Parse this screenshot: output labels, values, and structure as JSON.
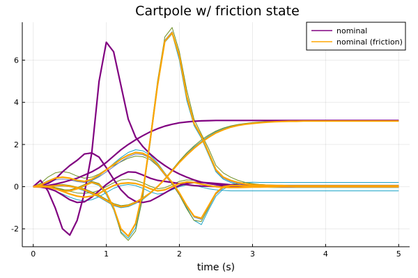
{
  "chart_data": {
    "type": "line",
    "title": "Cartpole w/ friction state",
    "xlabel": "time (s)",
    "ylabel": "",
    "xlim": [
      -0.15,
      5.15
    ],
    "ylim": [
      -2.85,
      7.8
    ],
    "xticks": [
      0,
      1,
      2,
      3,
      4,
      5
    ],
    "yticks": [
      -2,
      0,
      2,
      4,
      6
    ],
    "grid": true,
    "legend": {
      "placement": "top-right",
      "entries": [
        "nominal",
        "nominal (friction)"
      ]
    },
    "colors": {
      "nominal": "#800080",
      "friction": "#FFA500",
      "sample_teal": "#1aa3c7",
      "sample_olive": "#6b8e23",
      "sample_slate": "#6a7fb5"
    },
    "x": [
      0.0,
      0.1,
      0.2,
      0.3,
      0.4,
      0.5,
      0.6,
      0.7,
      0.8,
      0.9,
      1.0,
      1.1,
      1.2,
      1.3,
      1.4,
      1.5,
      1.6,
      1.7,
      1.8,
      1.9,
      2.0,
      2.1,
      2.2,
      2.3,
      2.4,
      2.5,
      2.6,
      2.7,
      2.8,
      2.9,
      3.0,
      3.1,
      3.2,
      3.3,
      3.4,
      3.5,
      3.6,
      3.7,
      3.8,
      3.9,
      4.0,
      4.1,
      4.2,
      4.3,
      4.4,
      4.5,
      4.6,
      4.7,
      4.8,
      4.9,
      5.0
    ],
    "series": [
      {
        "name": "nominal",
        "role": "nominal",
        "values": [
          0.0,
          0.0,
          0.05,
          0.12,
          0.2,
          0.3,
          0.4,
          0.55,
          0.7,
          0.9,
          1.15,
          1.45,
          1.75,
          2.0,
          2.22,
          2.42,
          2.6,
          2.75,
          2.87,
          2.96,
          3.03,
          3.07,
          3.1,
          3.12,
          3.13,
          3.14,
          3.14,
          3.14,
          3.14,
          3.14,
          3.14,
          3.14,
          3.14,
          3.14,
          3.14,
          3.14,
          3.14,
          3.14,
          3.14,
          3.14,
          3.14,
          3.14,
          3.14,
          3.14,
          3.14,
          3.14,
          3.14,
          3.14,
          3.14,
          3.14,
          3.14
        ]
      },
      {
        "role": "nominal",
        "values": [
          0.0,
          0.3,
          -0.2,
          -1.0,
          -2.0,
          -2.3,
          -1.6,
          -0.3,
          1.6,
          5.0,
          6.85,
          6.4,
          4.8,
          3.2,
          2.35,
          1.9,
          1.55,
          1.25,
          1.0,
          0.78,
          0.6,
          0.45,
          0.32,
          0.22,
          0.15,
          0.1,
          0.06,
          0.04,
          0.02,
          0.01,
          0.0,
          0.0,
          0.0,
          0.0,
          0.0,
          0.0,
          0.0,
          0.0,
          0.0,
          0.0,
          0.0,
          0.0,
          0.0,
          0.0,
          0.0,
          0.0,
          0.0,
          0.0,
          0.0,
          0.0,
          0.0
        ]
      },
      {
        "role": "nominal",
        "values": [
          0.0,
          0.05,
          0.15,
          0.35,
          0.7,
          1.0,
          1.25,
          1.55,
          1.6,
          1.4,
          0.9,
          0.35,
          -0.15,
          -0.5,
          -0.7,
          -0.75,
          -0.68,
          -0.5,
          -0.3,
          -0.1,
          0.05,
          0.15,
          0.2,
          0.2,
          0.18,
          0.15,
          0.12,
          0.09,
          0.07,
          0.05,
          0.03,
          0.02,
          0.01,
          0.0,
          0.0,
          0.0,
          0.0,
          0.0,
          0.0,
          0.0,
          0.0,
          0.0,
          0.0,
          0.0,
          0.0,
          0.0,
          0.0,
          0.0,
          0.0,
          0.0,
          0.0
        ]
      },
      {
        "role": "nominal",
        "values": [
          0.0,
          -0.02,
          -0.08,
          -0.2,
          -0.4,
          -0.62,
          -0.75,
          -0.72,
          -0.5,
          -0.2,
          0.1,
          0.35,
          0.55,
          0.7,
          0.68,
          0.55,
          0.4,
          0.3,
          0.25,
          0.2,
          0.14,
          0.09,
          0.05,
          0.03,
          0.02,
          0.01,
          0.0,
          0.0,
          0.0,
          0.0,
          0.0,
          0.0,
          0.0,
          0.0,
          0.0,
          0.0,
          0.0,
          0.0,
          0.0,
          0.0,
          0.0,
          0.0,
          0.0,
          0.0,
          0.0,
          0.0,
          0.0,
          0.0,
          0.0,
          0.0,
          0.0
        ]
      },
      {
        "name": "nominal (friction)",
        "role": "friction",
        "values": [
          0.0,
          0.0,
          0.02,
          0.04,
          0.06,
          0.02,
          -0.05,
          -0.15,
          -0.3,
          -0.45,
          -0.65,
          -0.85,
          -0.95,
          -0.9,
          -0.75,
          -0.55,
          -0.3,
          0.0,
          0.35,
          0.75,
          1.15,
          1.5,
          1.82,
          2.1,
          2.34,
          2.55,
          2.7,
          2.82,
          2.9,
          2.96,
          3.0,
          3.03,
          3.06,
          3.08,
          3.09,
          3.1,
          3.1,
          3.11,
          3.11,
          3.11,
          3.11,
          3.11,
          3.11,
          3.11,
          3.11,
          3.11,
          3.11,
          3.11,
          3.11,
          3.11,
          3.11
        ]
      },
      {
        "role": "friction",
        "values": [
          0.0,
          0.05,
          0.0,
          -0.1,
          -0.2,
          -0.2,
          -0.1,
          0.05,
          0.2,
          0.1,
          -0.3,
          -1.0,
          -2.0,
          -2.35,
          -1.75,
          -0.2,
          2.2,
          4.8,
          6.9,
          7.3,
          6.2,
          4.3,
          3.0,
          2.4,
          1.6,
          0.8,
          0.45,
          0.3,
          0.2,
          0.13,
          0.09,
          0.07,
          0.06,
          0.05,
          0.05,
          0.04,
          0.04,
          0.04,
          0.04,
          0.04,
          0.04,
          0.04,
          0.04,
          0.04,
          0.04,
          0.04,
          0.04,
          0.04,
          0.04,
          0.04,
          0.04
        ]
      },
      {
        "role": "friction",
        "values": [
          0.0,
          0.08,
          0.25,
          0.4,
          0.45,
          0.4,
          0.3,
          0.25,
          0.35,
          0.55,
          0.8,
          1.05,
          1.3,
          1.5,
          1.62,
          1.58,
          1.4,
          1.05,
          0.6,
          0.2,
          -0.3,
          -0.9,
          -1.4,
          -1.5,
          -0.9,
          -0.3,
          0.0,
          0.05,
          0.05,
          0.04,
          0.03,
          0.02,
          0.02,
          0.01,
          0.01,
          0.01,
          0.0,
          0.0,
          0.0,
          0.0,
          0.0,
          0.0,
          0.0,
          0.0,
          0.0,
          0.0,
          0.0,
          0.0,
          0.0,
          0.0,
          0.0
        ]
      },
      {
        "role": "friction",
        "values": [
          0.0,
          0.0,
          -0.02,
          -0.1,
          -0.22,
          -0.35,
          -0.45,
          -0.5,
          -0.45,
          -0.32,
          -0.12,
          0.05,
          0.15,
          0.18,
          0.15,
          0.05,
          -0.1,
          -0.2,
          -0.15,
          0.0,
          0.15,
          0.22,
          0.2,
          0.12,
          0.05,
          0.0,
          -0.03,
          -0.04,
          -0.04,
          -0.03,
          -0.02,
          -0.02,
          -0.01,
          -0.01,
          0.0,
          0.0,
          0.0,
          0.0,
          0.0,
          0.0,
          0.0,
          0.0,
          0.0,
          0.0,
          0.0,
          0.0,
          0.0,
          0.0,
          0.0,
          0.0,
          0.0
        ]
      },
      {
        "role": "sample_teal",
        "values": [
          0.0,
          0.0,
          0.0,
          0.02,
          0.04,
          0.0,
          -0.08,
          -0.2,
          -0.35,
          -0.5,
          -0.7,
          -0.9,
          -1.0,
          -0.95,
          -0.8,
          -0.6,
          -0.33,
          -0.02,
          0.35,
          0.76,
          1.18,
          1.55,
          1.88,
          2.15,
          2.4,
          2.6,
          2.75,
          2.86,
          2.93,
          2.99,
          3.03,
          3.06,
          3.08,
          3.1,
          3.11,
          3.12,
          3.12,
          3.12,
          3.13,
          3.13,
          3.13,
          3.13,
          3.13,
          3.13,
          3.13,
          3.13,
          3.13,
          3.13,
          3.13,
          3.13,
          3.13
        ]
      },
      {
        "role": "sample_teal",
        "values": [
          0.0,
          0.05,
          -0.02,
          -0.12,
          -0.22,
          -0.22,
          -0.12,
          0.02,
          0.18,
          0.05,
          -0.38,
          -1.1,
          -2.15,
          -2.45,
          -1.95,
          -0.35,
          2.05,
          4.7,
          6.85,
          7.25,
          6.0,
          4.1,
          2.9,
          2.3,
          1.5,
          0.7,
          0.35,
          0.2,
          0.1,
          0.04,
          0.0,
          -0.02,
          -0.03,
          -0.04,
          -0.04,
          -0.04,
          -0.04,
          -0.04,
          -0.04,
          -0.04,
          -0.04,
          -0.04,
          -0.04,
          -0.04,
          -0.04,
          -0.04,
          -0.04,
          -0.04,
          -0.04,
          -0.04,
          -0.04
        ]
      },
      {
        "role": "sample_teal",
        "values": [
          0.0,
          0.1,
          0.28,
          0.42,
          0.45,
          0.38,
          0.26,
          0.2,
          0.3,
          0.5,
          0.8,
          1.1,
          1.38,
          1.62,
          1.75,
          1.7,
          1.5,
          1.12,
          0.65,
          0.22,
          -0.35,
          -1.0,
          -1.6,
          -1.8,
          -1.1,
          -0.45,
          -0.12,
          0.05,
          0.15,
          0.2,
          0.21,
          0.2,
          0.2,
          0.2,
          0.2,
          0.2,
          0.2,
          0.2,
          0.2,
          0.2,
          0.2,
          0.2,
          0.2,
          0.2,
          0.2,
          0.2,
          0.2,
          0.2,
          0.2,
          0.2,
          0.2
        ]
      },
      {
        "role": "sample_teal",
        "values": [
          0.0,
          -0.02,
          -0.08,
          -0.2,
          -0.35,
          -0.5,
          -0.62,
          -0.68,
          -0.62,
          -0.48,
          -0.28,
          -0.08,
          0.05,
          0.1,
          0.05,
          -0.08,
          -0.25,
          -0.35,
          -0.3,
          -0.15,
          0.0,
          0.08,
          0.06,
          -0.02,
          -0.1,
          -0.15,
          -0.18,
          -0.2,
          -0.2,
          -0.2,
          -0.2,
          -0.2,
          -0.2,
          -0.2,
          -0.2,
          -0.2,
          -0.2,
          -0.2,
          -0.2,
          -0.2,
          -0.2,
          -0.2,
          -0.2,
          -0.2,
          -0.2,
          -0.2,
          -0.2,
          -0.2,
          -0.2,
          -0.2,
          -0.2
        ]
      },
      {
        "role": "sample_olive",
        "values": [
          0.0,
          0.02,
          0.05,
          0.08,
          0.1,
          0.06,
          -0.02,
          -0.1,
          -0.25,
          -0.4,
          -0.6,
          -0.8,
          -0.9,
          -0.86,
          -0.72,
          -0.52,
          -0.28,
          0.02,
          0.38,
          0.8,
          1.22,
          1.6,
          1.93,
          2.22,
          2.45,
          2.64,
          2.78,
          2.88,
          2.95,
          3.0,
          3.04,
          3.07,
          3.09,
          3.1,
          3.11,
          3.11,
          3.12,
          3.12,
          3.12,
          3.12,
          3.12,
          3.12,
          3.12,
          3.12,
          3.12,
          3.12,
          3.12,
          3.12,
          3.12,
          3.12,
          3.12
        ]
      },
      {
        "role": "sample_olive",
        "values": [
          0.0,
          0.08,
          0.05,
          -0.05,
          -0.15,
          -0.15,
          -0.05,
          0.1,
          0.25,
          0.15,
          -0.25,
          -1.0,
          -2.2,
          -2.55,
          -2.1,
          -0.5,
          2.35,
          5.0,
          7.1,
          7.55,
          6.4,
          4.6,
          3.2,
          2.5,
          1.8,
          1.0,
          0.65,
          0.45,
          0.3,
          0.2,
          0.14,
          0.1,
          0.08,
          0.06,
          0.05,
          0.05,
          0.05,
          0.05,
          0.05,
          0.05,
          0.05,
          0.05,
          0.05,
          0.05,
          0.05,
          0.05,
          0.05,
          0.05,
          0.05,
          0.05,
          0.05
        ]
      },
      {
        "role": "sample_olive",
        "values": [
          0.0,
          0.15,
          0.45,
          0.65,
          0.72,
          0.65,
          0.5,
          0.4,
          0.45,
          0.6,
          0.82,
          1.0,
          1.18,
          1.35,
          1.45,
          1.42,
          1.28,
          0.98,
          0.55,
          0.12,
          -0.4,
          -1.05,
          -1.6,
          -1.65,
          -1.0,
          -0.35,
          -0.05,
          0.1,
          0.14,
          0.14,
          0.12,
          0.1,
          0.08,
          0.07,
          0.06,
          0.06,
          0.06,
          0.06,
          0.06,
          0.06,
          0.06,
          0.06,
          0.06,
          0.06,
          0.06,
          0.06,
          0.06,
          0.06,
          0.06,
          0.06,
          0.06
        ]
      },
      {
        "role": "sample_olive",
        "values": [
          0.0,
          0.02,
          0.02,
          -0.04,
          -0.12,
          -0.22,
          -0.3,
          -0.32,
          -0.28,
          -0.18,
          0.0,
          0.18,
          0.32,
          0.35,
          0.3,
          0.18,
          0.02,
          -0.1,
          -0.05,
          0.1,
          0.25,
          0.32,
          0.3,
          0.22,
          0.14,
          0.08,
          0.05,
          0.04,
          0.04,
          0.04,
          0.04,
          0.04,
          0.04,
          0.04,
          0.04,
          0.04,
          0.04,
          0.04,
          0.04,
          0.04,
          0.04,
          0.04,
          0.04,
          0.04,
          0.04,
          0.04,
          0.04,
          0.04,
          0.04,
          0.04,
          0.04
        ]
      },
      {
        "role": "sample_slate",
        "values": [
          0.0,
          0.0,
          0.0,
          0.02,
          0.03,
          0.0,
          -0.06,
          -0.18,
          -0.32,
          -0.48,
          -0.68,
          -0.88,
          -0.98,
          -0.92,
          -0.78,
          -0.57,
          -0.31,
          0.0,
          0.36,
          0.77,
          1.17,
          1.53,
          1.85,
          2.13,
          2.37,
          2.57,
          2.72,
          2.84,
          2.91,
          2.97,
          3.01,
          3.04,
          3.06,
          3.08,
          3.09,
          3.1,
          3.1,
          3.1,
          3.1,
          3.1,
          3.1,
          3.1,
          3.1,
          3.1,
          3.1,
          3.1,
          3.1,
          3.1,
          3.1,
          3.1,
          3.1
        ]
      },
      {
        "role": "sample_slate",
        "values": [
          0.0,
          0.03,
          0.0,
          -0.08,
          -0.18,
          -0.18,
          -0.08,
          0.06,
          0.22,
          0.12,
          -0.3,
          -1.05,
          -2.05,
          -2.35,
          -1.8,
          -0.25,
          2.15,
          4.75,
          6.95,
          7.35,
          6.1,
          4.2,
          2.95,
          2.35,
          1.55,
          0.75,
          0.4,
          0.25,
          0.15,
          0.08,
          0.04,
          0.02,
          0.01,
          0.0,
          0.0,
          0.0,
          0.0,
          0.0,
          0.0,
          0.0,
          0.0,
          0.0,
          0.0,
          0.0,
          0.0,
          0.0,
          0.0,
          0.0,
          0.0,
          0.0,
          0.0
        ]
      },
      {
        "role": "sample_slate",
        "values": [
          0.0,
          0.06,
          0.2,
          0.32,
          0.36,
          0.32,
          0.24,
          0.2,
          0.28,
          0.46,
          0.7,
          0.95,
          1.2,
          1.42,
          1.55,
          1.52,
          1.35,
          1.0,
          0.55,
          0.15,
          -0.35,
          -0.95,
          -1.45,
          -1.55,
          -0.95,
          -0.35,
          -0.05,
          0.05,
          0.08,
          0.08,
          0.08,
          0.07,
          0.07,
          0.07,
          0.07,
          0.07,
          0.07,
          0.07,
          0.07,
          0.07,
          0.07,
          0.07,
          0.07,
          0.07,
          0.07,
          0.07,
          0.07,
          0.07,
          0.07,
          0.07,
          0.07
        ]
      }
    ]
  }
}
